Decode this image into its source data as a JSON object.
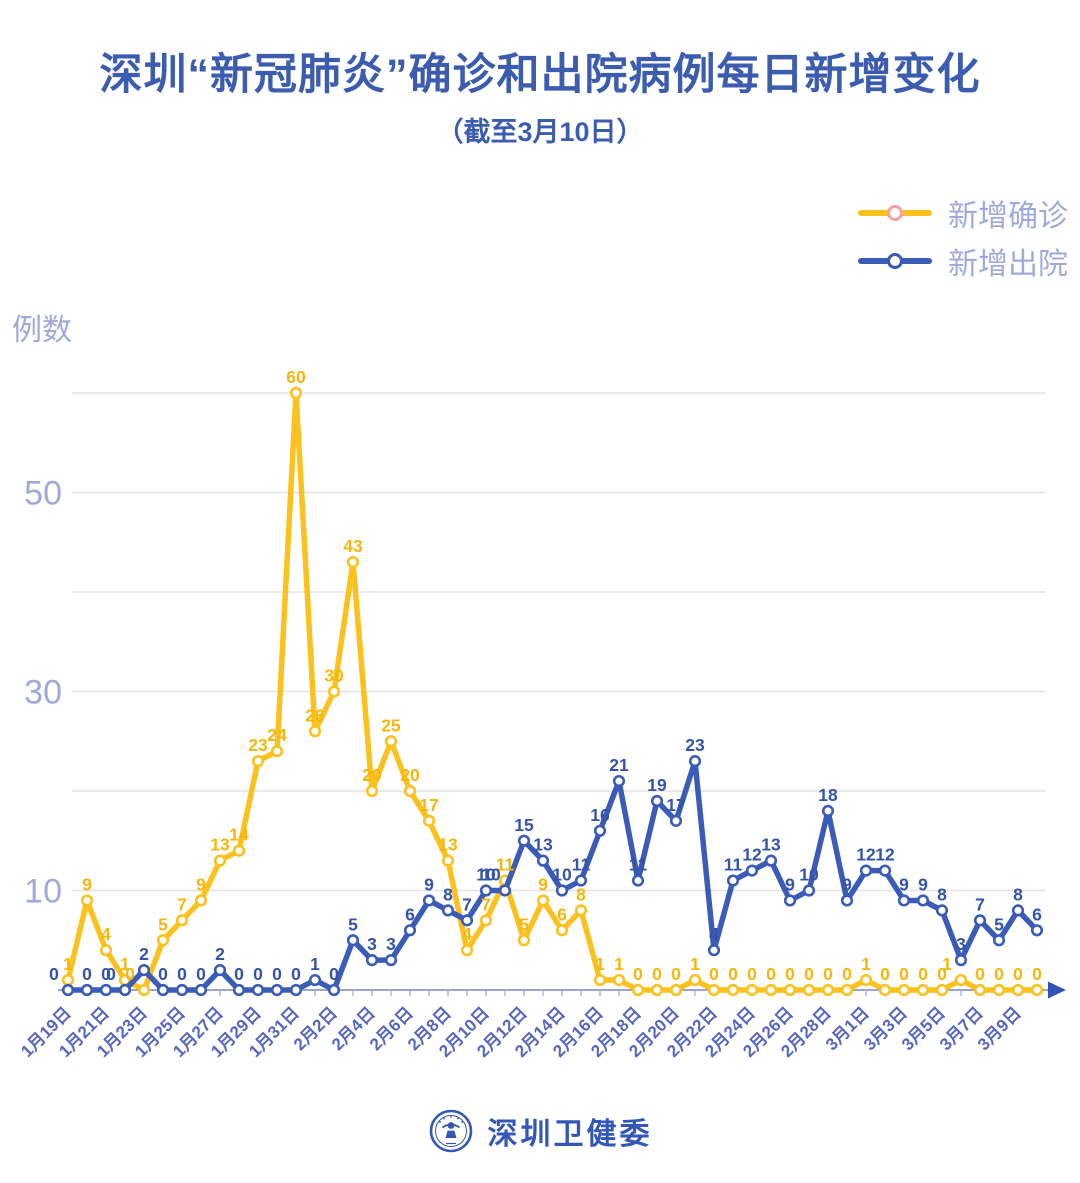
{
  "page": {
    "title": "深圳“新冠肺炎”确诊和出院病例每日新增变化",
    "subtitle": "（截至3月10日）"
  },
  "legend": [
    {
      "key": "confirmed",
      "label": "新增确诊"
    },
    {
      "key": "discharged",
      "label": "新增出院"
    }
  ],
  "footer": {
    "brand": "深圳卫健委",
    "logo": "shenzhen-health-commission-emblem"
  },
  "colors": {
    "title": "#3c5cb0",
    "subtitle": "#3c5cb0",
    "confirmed": "#fcc11d",
    "discharged": "#3a5cb8",
    "confirmed_label": "#f5b70d",
    "discharged_label": "#3354a8",
    "axis_text": "#9fa9da",
    "x_label": "#5566be",
    "gridline": "#e3e3e9",
    "axis_line": "#9aa6ce",
    "arrow": "#3154b4",
    "legend_text": "#9fa9da",
    "legend_ring_confirmed": "#f0a3a0",
    "legend_ring_discharged": "#3a5cb8",
    "brand": "#3257b5"
  },
  "chart_data": {
    "type": "line",
    "title": "深圳“新冠肺炎”确诊和出院病例每日新增变化",
    "subtitle": "（截至3月10日）",
    "ylabel": "例数",
    "xlabel": "",
    "ylim": [
      0,
      62
    ],
    "gridlines": [
      10,
      20,
      30,
      40,
      50,
      60
    ],
    "yticks_labeled": [
      10,
      30,
      50
    ],
    "x_tick_every": 2,
    "legend_position": "top-right",
    "grid": true,
    "x": [
      "1月19日",
      "1月20日",
      "1月21日",
      "1月22日",
      "1月23日",
      "1月24日",
      "1月25日",
      "1月26日",
      "1月27日",
      "1月28日",
      "1月29日",
      "1月30日",
      "1月31日",
      "2月1日",
      "2月2日",
      "2月3日",
      "2月4日",
      "2月5日",
      "2月6日",
      "2月7日",
      "2月8日",
      "2月9日",
      "2月10日",
      "2月11日",
      "2月12日",
      "2月13日",
      "2月14日",
      "2月15日",
      "2月16日",
      "2月17日",
      "2月18日",
      "2月19日",
      "2月20日",
      "2月21日",
      "2月22日",
      "2月23日",
      "2月24日",
      "2月25日",
      "2月26日",
      "2月27日",
      "2月28日",
      "2月29日",
      "3月1日",
      "3月2日",
      "3月3日",
      "3月4日",
      "3月5日",
      "3月6日",
      "3月7日",
      "3月8日",
      "3月9日",
      "3月10日"
    ],
    "x_tick_labels": [
      "1月19日",
      "1月21日",
      "1月23日",
      "1月25日",
      "1月27日",
      "1月29日",
      "1月31日",
      "2月2日",
      "2月4日",
      "2月6日",
      "2月8日",
      "2月10日",
      "2月12日",
      "2月14日",
      "2月16日",
      "2月18日",
      "2月20日",
      "2月22日",
      "2月24日",
      "2月26日",
      "2月28日",
      "3月1日",
      "3月3日",
      "3月5日",
      "3月7日",
      "3月9日"
    ],
    "series": [
      {
        "name": "新增确诊",
        "values": [
          1,
          9,
          4,
          1,
          0,
          5,
          7,
          9,
          13,
          14,
          23,
          24,
          60,
          26,
          30,
          43,
          20,
          25,
          20,
          17,
          13,
          4,
          7,
          11,
          5,
          9,
          6,
          8,
          1,
          1,
          0,
          0,
          0,
          1,
          0,
          0,
          0,
          0,
          0,
          0,
          0,
          0,
          1,
          0,
          0,
          0,
          0,
          1,
          0,
          0,
          0,
          0
        ]
      },
      {
        "name": "新增出院",
        "values": [
          0,
          0,
          0,
          0,
          2,
          0,
          0,
          0,
          2,
          0,
          0,
          0,
          0,
          1,
          0,
          5,
          3,
          3,
          6,
          9,
          8,
          7,
          10,
          10,
          15,
          13,
          10,
          11,
          16,
          21,
          11,
          19,
          17,
          23,
          4,
          11,
          12,
          13,
          9,
          10,
          18,
          9,
          12,
          12,
          9,
          9,
          8,
          3,
          7,
          5,
          8,
          6
        ]
      }
    ]
  }
}
